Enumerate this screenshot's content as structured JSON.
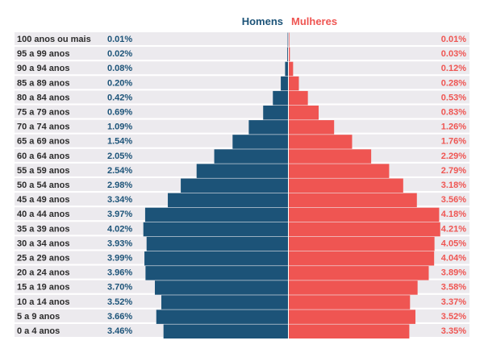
{
  "chart_data": {
    "type": "bar",
    "orientation": "horizontal-population-pyramid",
    "legend": {
      "men": "Homens",
      "women": "Mulheres",
      "placement": "top-center"
    },
    "colors": {
      "men": "#1c5378",
      "women": "#ef5552",
      "row_band": "#eceaee",
      "center_line": "#ffffff"
    },
    "unit": "%",
    "categories": [
      "100 anos ou mais",
      "95 a 99 anos",
      "90 a 94 anos",
      "85 a 89 anos",
      "80 a 84 anos",
      "75 a 79 anos",
      "70 a 74 anos",
      "65 a 69 anos",
      "60 a 64 anos",
      "55 a 59 anos",
      "50 a 54 anos",
      "45 a 49 anos",
      "40 a 44 anos",
      "35 a 39 anos",
      "30 a 34 anos",
      "25 a 29 anos",
      "20 a 24 anos",
      "15 a 19 anos",
      "10 a 14 anos",
      "5 a 9 anos",
      "0 a 4 anos"
    ],
    "series": [
      {
        "name": "Homens",
        "values": [
          0.01,
          0.02,
          0.08,
          0.2,
          0.42,
          0.69,
          1.09,
          1.54,
          2.05,
          2.54,
          2.98,
          3.34,
          3.97,
          4.02,
          3.93,
          3.99,
          3.96,
          3.7,
          3.52,
          3.66,
          3.46
        ],
        "labels": [
          "0.01%",
          "0.02%",
          "0.08%",
          "0.20%",
          "0.42%",
          "0.69%",
          "1.09%",
          "1.54%",
          "2.05%",
          "2.54%",
          "2.98%",
          "3.34%",
          "3.97%",
          "4.02%",
          "3.93%",
          "3.99%",
          "3.96%",
          "3.70%",
          "3.52%",
          "3.66%",
          "3.46%"
        ]
      },
      {
        "name": "Mulheres",
        "values": [
          0.01,
          0.03,
          0.12,
          0.28,
          0.53,
          0.83,
          1.26,
          1.76,
          2.29,
          2.79,
          3.18,
          3.56,
          4.18,
          4.21,
          4.05,
          4.04,
          3.89,
          3.58,
          3.37,
          3.52,
          3.35
        ],
        "labels": [
          "0.01%",
          "0.03%",
          "0.12%",
          "0.28%",
          "0.53%",
          "0.83%",
          "1.26%",
          "1.76%",
          "2.29%",
          "2.79%",
          "3.18%",
          "3.56%",
          "4.18%",
          "4.21%",
          "4.05%",
          "4.04%",
          "3.89%",
          "3.58%",
          "3.37%",
          "3.52%",
          "3.35%"
        ]
      }
    ],
    "xlim": [
      0,
      4.3
    ],
    "grid": false
  }
}
